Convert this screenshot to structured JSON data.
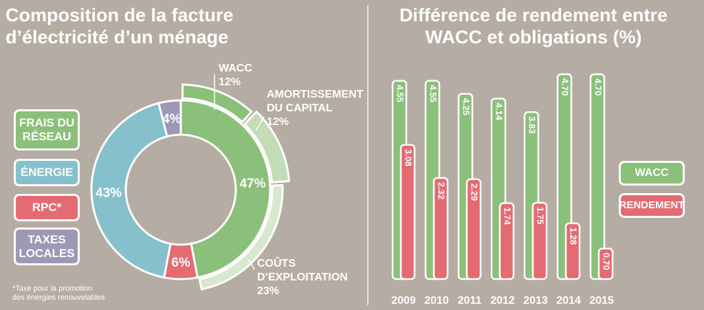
{
  "left_title_line1": "Composition de la facture",
  "left_title_line2": "d’électricité d’un ménage",
  "right_title_line1": "Différence de rendement entre",
  "right_title_line2": "WACC et obligations (%)",
  "legend": {
    "frais": "FRAIS DU\nRÉSEAU",
    "energie": "ÉNERGIE",
    "rpc": "RPC*",
    "taxes": "TAXES\nLOCALES"
  },
  "footnote": "*Taxe pour la promotion\ndes énergies renouvelables",
  "colors": {
    "green": "#8bc07b",
    "light_green": "#c2dcb5",
    "lighter_green": "#d7e8cf",
    "blue": "#86c0cc",
    "red": "#e46b72",
    "purple": "#9c98b6"
  },
  "chart_data": [
    {
      "type": "pie",
      "title": "Composition de la facture d’électricité d’un ménage",
      "slices": [
        {
          "label": "FRAIS DU RÉSEAU",
          "value": 47,
          "text": "47%",
          "color": "#8bc07b"
        },
        {
          "label": "RPC*",
          "value": 6,
          "text": "6%",
          "color": "#e46b72"
        },
        {
          "label": "ÉNERGIE",
          "value": 43,
          "text": "43%",
          "color": "#86c0cc"
        },
        {
          "label": "TAXES LOCALES",
          "value": 4,
          "text": "4%",
          "color": "#9c98b6"
        }
      ],
      "outer_breakdown": [
        {
          "label": "WACC",
          "value": 12,
          "text": "WACC\n12%"
        },
        {
          "label": "AMORTISSEMENT DU CAPITAL",
          "value": 12,
          "text": "AMORTISSEMENT\nDU CAPITAL\n12%"
        },
        {
          "label": "COÛTS D’EXPLOITATION",
          "value": 23,
          "text": "COÛTS\nD’EXPLOITATION\n23%"
        }
      ]
    },
    {
      "type": "bar",
      "title": "Différence de rendement entre WACC et obligations (%)",
      "categories": [
        "2009",
        "2010",
        "2011",
        "2012",
        "2013",
        "2014",
        "2015"
      ],
      "series": [
        {
          "name": "WACC",
          "values": [
            4.55,
            4.55,
            4.25,
            4.14,
            3.83,
            4.7,
            4.7
          ],
          "labels": [
            "4.55",
            "4.55",
            "4.25",
            "4.14",
            "3.83",
            "4.70",
            "4.70"
          ],
          "color": "#8bc07b"
        },
        {
          "name": "RENDEMENT",
          "values": [
            3.08,
            2.32,
            2.29,
            1.74,
            1.75,
            1.28,
            0.7
          ],
          "labels": [
            "3.08",
            "2.32",
            "2.29",
            "1.74",
            "1.75",
            "1.28",
            "0.70"
          ],
          "color": "#e46b72"
        }
      ],
      "ylim": [
        0,
        4.7
      ],
      "legend": "right"
    }
  ]
}
